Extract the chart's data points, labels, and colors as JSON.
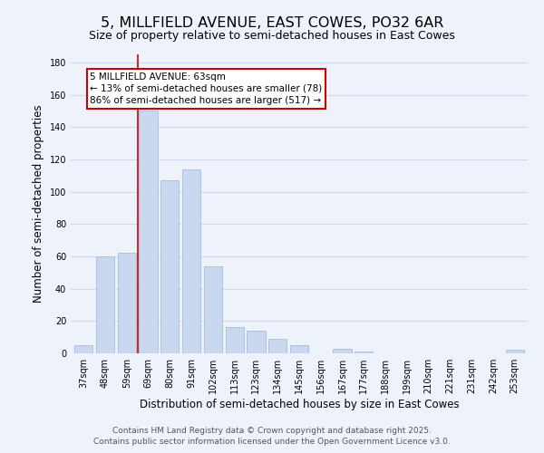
{
  "title": "5, MILLFIELD AVENUE, EAST COWES, PO32 6AR",
  "subtitle": "Size of property relative to semi-detached houses in East Cowes",
  "xlabel": "Distribution of semi-detached houses by size in East Cowes",
  "ylabel": "Number of semi-detached properties",
  "categories": [
    "37sqm",
    "48sqm",
    "59sqm",
    "69sqm",
    "80sqm",
    "91sqm",
    "102sqm",
    "113sqm",
    "123sqm",
    "134sqm",
    "145sqm",
    "156sqm",
    "167sqm",
    "177sqm",
    "188sqm",
    "199sqm",
    "210sqm",
    "221sqm",
    "231sqm",
    "242sqm",
    "253sqm"
  ],
  "values": [
    5,
    60,
    62,
    150,
    107,
    114,
    54,
    16,
    14,
    9,
    5,
    0,
    3,
    1,
    0,
    0,
    0,
    0,
    0,
    0,
    2
  ],
  "bar_color": "#c8d8ee",
  "bar_edge_color": "#a8bcd8",
  "vline_x_idx": 2.5,
  "vline_color": "#cc0000",
  "annotation_line1": "5 MILLFIELD AVENUE: 63sqm",
  "annotation_line2": "← 13% of semi-detached houses are smaller (78)",
  "annotation_line3": "86% of semi-detached houses are larger (517) →",
  "ylim": [
    0,
    185
  ],
  "yticks": [
    0,
    20,
    40,
    60,
    80,
    100,
    120,
    140,
    160,
    180
  ],
  "grid_color": "#d0d8e8",
  "background_color": "#eef2fa",
  "footer_line1": "Contains HM Land Registry data © Crown copyright and database right 2025.",
  "footer_line2": "Contains public sector information licensed under the Open Government Licence v3.0.",
  "title_fontsize": 11.5,
  "subtitle_fontsize": 9,
  "axis_label_fontsize": 8.5,
  "tick_fontsize": 7,
  "annotation_fontsize": 7.5,
  "footer_fontsize": 6.5
}
